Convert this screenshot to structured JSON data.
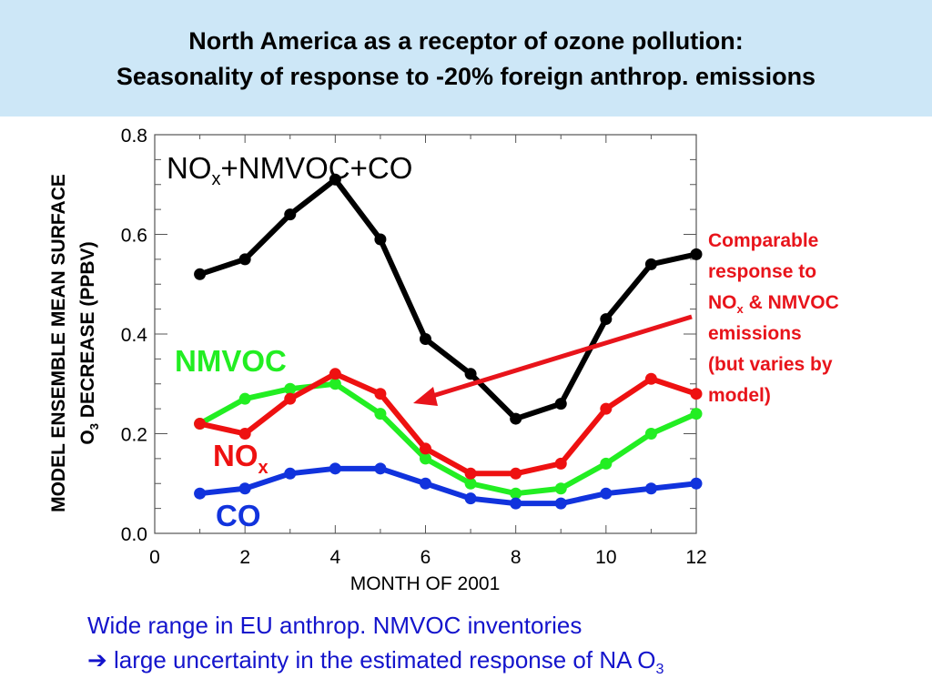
{
  "header": {
    "line1": "North America as a receptor of ozone pollution:",
    "line2": "Seasonality of response to -20% foreign anthrop. emissions"
  },
  "ylabel": {
    "line1": "MODEL ENSEMBLE MEAN SURFACE",
    "line2_main": "O",
    "line2_sub": "3",
    "line2_rest": " DECREASE (PPBV)"
  },
  "callout": {
    "line1": "Comparable",
    "line2": "response to",
    "line3_main": "NO",
    "line3_sub": "x",
    "line3_rest": " & NMVOC",
    "line4": "emissions",
    "line5": "(but varies by",
    "line6": "model)"
  },
  "footer": {
    "line1": "Wide range in EU anthrop. NMVOC inventories",
    "arrow": "➔",
    "line2_main": " large uncertainty in the estimated response of NA O",
    "line2_sub": "3"
  },
  "series_labels": {
    "total_main": "NO",
    "total_sub": "x",
    "total_rest": "+NMVOC+CO",
    "nmvoc": "NMVOC",
    "nox_main": "NO",
    "nox_sub": "x",
    "co": "CO"
  },
  "colors": {
    "header_bg": "#cde7f7",
    "total": "#000000",
    "nmvoc": "#22ee22",
    "nox": "#ee1111",
    "co": "#1133dd",
    "callout": "#e8141b",
    "footer": "#1414cc"
  },
  "chart_data": {
    "type": "line",
    "xlabel": "MONTH OF 2001",
    "ylabel": "MODEL ENSEMBLE MEAN SURFACE O3 DECREASE (PPBV)",
    "xlim": [
      0,
      12
    ],
    "ylim": [
      0.0,
      0.8
    ],
    "xticks": [
      "0",
      "2",
      "4",
      "6",
      "8",
      "10",
      "12"
    ],
    "yticks": [
      "0.0",
      "0.2",
      "0.4",
      "0.6",
      "0.8"
    ],
    "x": [
      1,
      2,
      3,
      4,
      5,
      6,
      7,
      8,
      9,
      10,
      11,
      12
    ],
    "series": [
      {
        "key": "total",
        "values": [
          0.52,
          0.55,
          0.64,
          0.71,
          0.59,
          0.39,
          0.32,
          0.23,
          0.26,
          0.43,
          0.54,
          0.56
        ]
      },
      {
        "key": "nox",
        "values": [
          0.22,
          0.2,
          0.27,
          0.32,
          0.28,
          0.17,
          0.12,
          0.12,
          0.14,
          0.25,
          0.31,
          0.28
        ]
      },
      {
        "key": "nmvoc",
        "values": [
          0.22,
          0.27,
          0.29,
          0.3,
          0.24,
          0.15,
          0.1,
          0.08,
          0.09,
          0.14,
          0.2,
          0.24
        ]
      },
      {
        "key": "co",
        "values": [
          0.08,
          0.09,
          0.12,
          0.13,
          0.13,
          0.1,
          0.07,
          0.06,
          0.06,
          0.08,
          0.09,
          0.1
        ]
      }
    ],
    "grid": false
  }
}
